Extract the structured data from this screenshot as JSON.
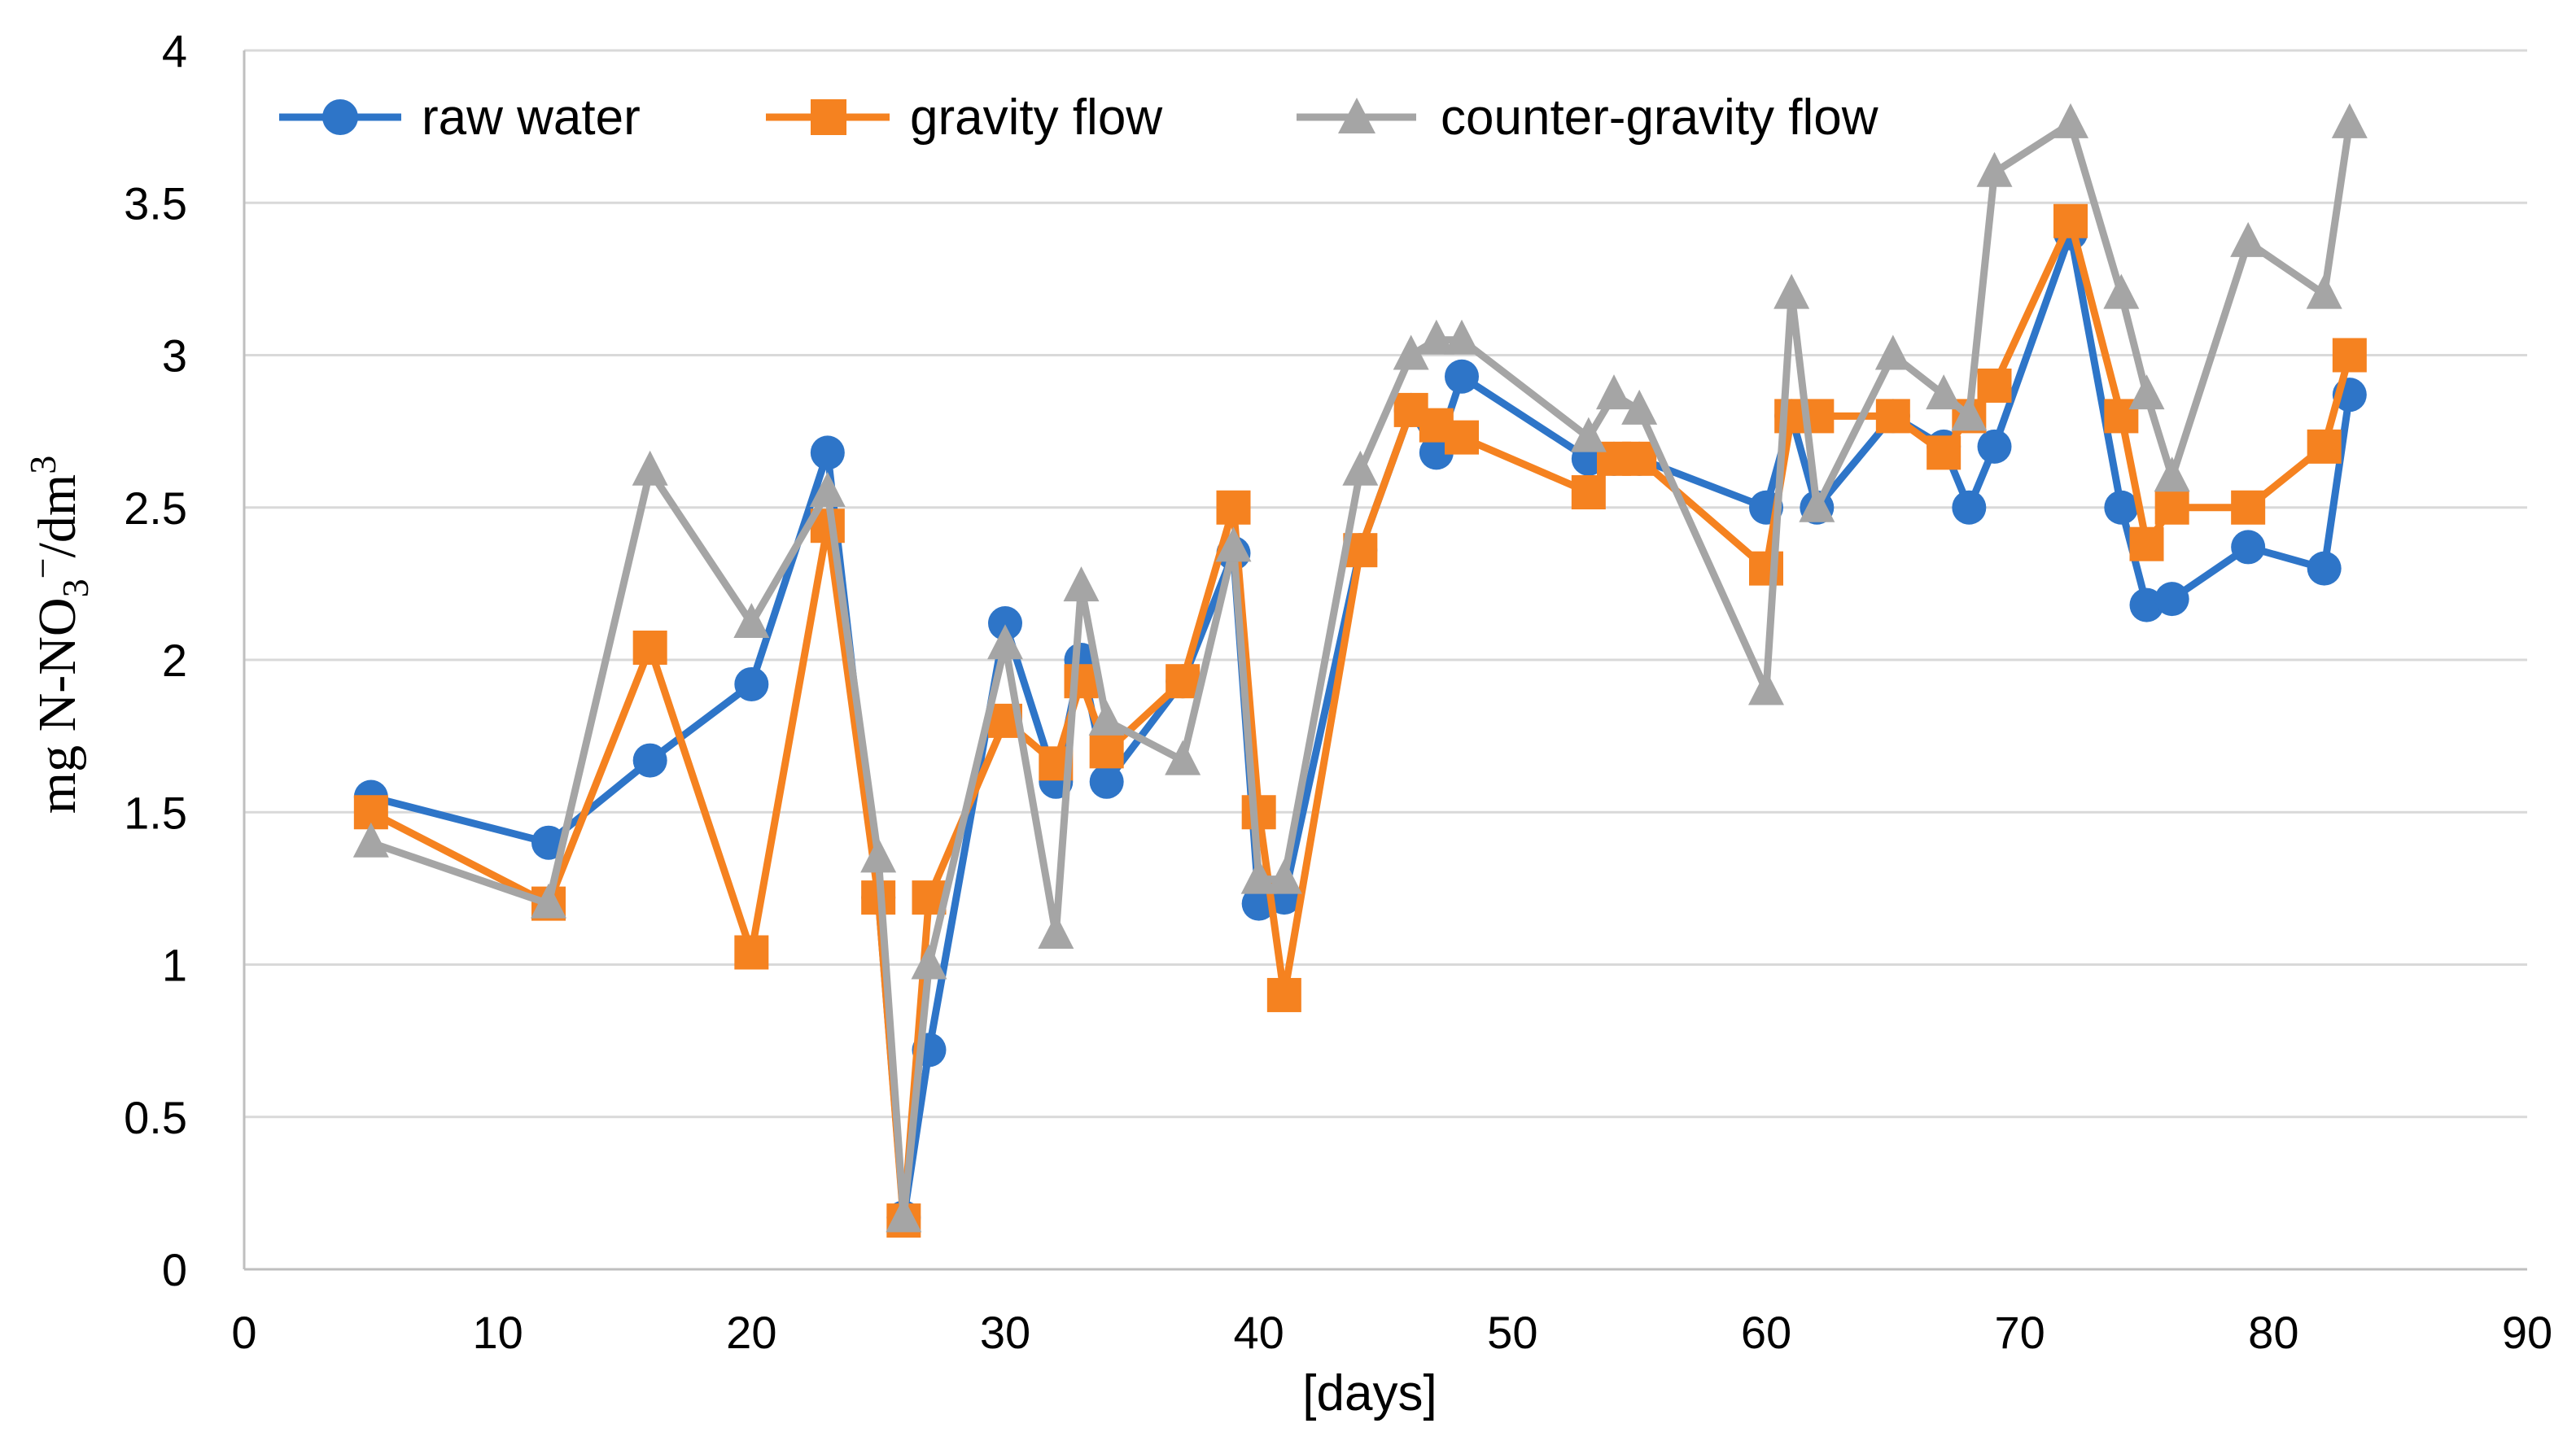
{
  "chart_data": {
    "type": "line",
    "title": "",
    "xlabel": "[days]",
    "ylabel": {
      "prefix": "mg  N-NO",
      "sub": "3",
      "sup_charge": "−",
      "middle": "/dm",
      "sup_exp": "3"
    },
    "xlim": [
      0,
      90
    ],
    "ylim": [
      0,
      4
    ],
    "xticks": [
      0,
      10,
      20,
      30,
      40,
      50,
      60,
      70,
      80,
      90
    ],
    "yticks": [
      0,
      0.5,
      1,
      1.5,
      2,
      2.5,
      3,
      3.5,
      4
    ],
    "ytick_labels": [
      "0",
      "0.5",
      "1",
      "1.5",
      "2",
      "2.5",
      "3",
      "3.5",
      "4"
    ],
    "grid": true,
    "legend_position": "top-left",
    "series": [
      {
        "name": "raw water",
        "color": "#2e75c8",
        "marker": "circle",
        "x": [
          5,
          12,
          16,
          20,
          23,
          25,
          26,
          27,
          30,
          32,
          33,
          34,
          37,
          39,
          40,
          41,
          44,
          46,
          47,
          48,
          53,
          54,
          55,
          60,
          61,
          62,
          65,
          67,
          68,
          69,
          72,
          74,
          75,
          76,
          79,
          82,
          83
        ],
        "y": [
          1.55,
          1.4,
          1.67,
          1.92,
          2.68,
          1.22,
          0.17,
          0.72,
          2.12,
          1.6,
          2.0,
          1.6,
          1.93,
          2.35,
          1.2,
          1.22,
          2.36,
          2.82,
          2.68,
          2.93,
          2.66,
          2.66,
          2.66,
          2.5,
          2.8,
          2.5,
          2.8,
          2.7,
          2.5,
          2.7,
          3.4,
          2.5,
          2.18,
          2.2,
          2.37,
          2.3,
          2.87
        ]
      },
      {
        "name": "gravity flow",
        "color": "#f58220",
        "marker": "square",
        "x": [
          5,
          12,
          16,
          20,
          23,
          25,
          26,
          27,
          30,
          32,
          33,
          34,
          37,
          39,
          40,
          41,
          44,
          46,
          47,
          48,
          53,
          54,
          55,
          60,
          61,
          62,
          65,
          67,
          68,
          69,
          72,
          74,
          75,
          76,
          79,
          82,
          83
        ],
        "y": [
          1.5,
          1.2,
          2.04,
          1.04,
          2.44,
          1.22,
          0.16,
          1.22,
          1.8,
          1.66,
          1.93,
          1.7,
          1.93,
          2.5,
          1.5,
          0.9,
          2.36,
          2.82,
          2.77,
          2.73,
          2.55,
          2.66,
          2.66,
          2.3,
          2.8,
          2.8,
          2.8,
          2.68,
          2.8,
          2.9,
          3.44,
          2.8,
          2.38,
          2.5,
          2.5,
          2.7,
          3.0
        ]
      },
      {
        "name": "counter-gravity flow",
        "color": "#a5a5a5",
        "marker": "triangle",
        "x": [
          5,
          12,
          16,
          20,
          23,
          25,
          26,
          27,
          30,
          32,
          33,
          34,
          37,
          39,
          40,
          41,
          44,
          46,
          47,
          48,
          53,
          54,
          55,
          60,
          61,
          62,
          65,
          67,
          68,
          69,
          72,
          74,
          75,
          76,
          79,
          82,
          83
        ],
        "y": [
          1.4,
          1.2,
          2.62,
          2.12,
          2.55,
          1.35,
          0.17,
          1.0,
          2.05,
          1.1,
          2.24,
          1.8,
          1.67,
          2.37,
          1.28,
          1.28,
          2.62,
          3.0,
          3.05,
          3.05,
          2.73,
          2.87,
          2.82,
          1.9,
          3.2,
          2.5,
          3.0,
          2.87,
          2.8,
          3.6,
          3.76,
          3.2,
          2.87,
          2.6,
          3.37,
          3.2,
          3.76
        ]
      }
    ]
  }
}
